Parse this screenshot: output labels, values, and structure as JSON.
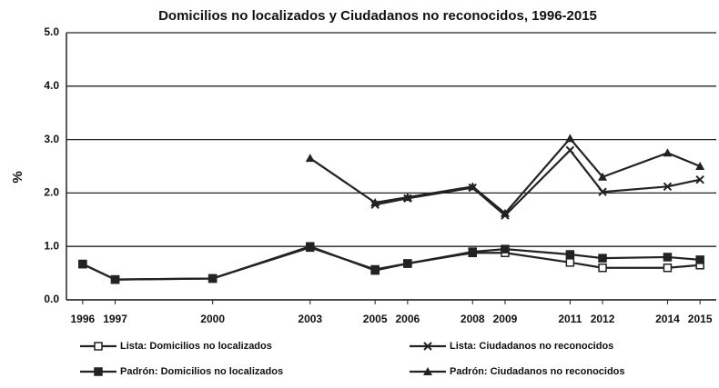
{
  "chart_data": {
    "type": "line",
    "title": "Domicilios no localizados y Ciudadanos no reconocidos, 1996-2015",
    "y_label": "%",
    "x": [
      1996,
      1997,
      2000,
      2003,
      2005,
      2006,
      2008,
      2009,
      2011,
      2012,
      2014,
      2015
    ],
    "xlim": [
      1995.5,
      2015.5
    ],
    "xticks": [
      1996,
      1997,
      2000,
      2003,
      2005,
      2006,
      2008,
      2009,
      2011,
      2012,
      2014,
      2015
    ],
    "ylim": [
      0,
      5
    ],
    "yticks": [
      {
        "value": 0,
        "label": "0.0"
      },
      {
        "value": 1,
        "label": "1.0"
      },
      {
        "value": 2,
        "label": "2.0"
      },
      {
        "value": 3,
        "label": "3.0"
      },
      {
        "value": 4,
        "label": "4.0"
      },
      {
        "value": 5,
        "label": "5.0"
      }
    ],
    "grid": true,
    "legend": "bottom",
    "series": [
      {
        "name": "Lista: Domicilios no localizados",
        "color": "#222222",
        "marker": "open-square",
        "values": [
          0.67,
          0.38,
          0.4,
          1.0,
          0.55,
          0.68,
          0.88,
          0.88,
          0.7,
          0.6,
          0.6,
          0.65
        ]
      },
      {
        "name": "Lista: Ciudadanos no reconocidos",
        "color": "#222222",
        "marker": "x",
        "values": [
          null,
          null,
          null,
          null,
          1.78,
          1.9,
          2.1,
          1.58,
          2.8,
          2.02,
          2.12,
          2.25
        ]
      },
      {
        "name": "Padrón: Domicilios no localizados",
        "color": "#222222",
        "marker": "square",
        "values": [
          0.67,
          0.38,
          0.4,
          0.98,
          0.57,
          0.68,
          0.9,
          0.95,
          0.85,
          0.78,
          0.8,
          0.75
        ]
      },
      {
        "name": "Padrón: Ciudadanos no reconocidos",
        "color": "#222222",
        "marker": "triangle",
        "values": [
          null,
          null,
          null,
          2.65,
          1.82,
          1.92,
          2.12,
          1.62,
          3.02,
          2.3,
          2.75,
          2.5
        ]
      }
    ]
  }
}
